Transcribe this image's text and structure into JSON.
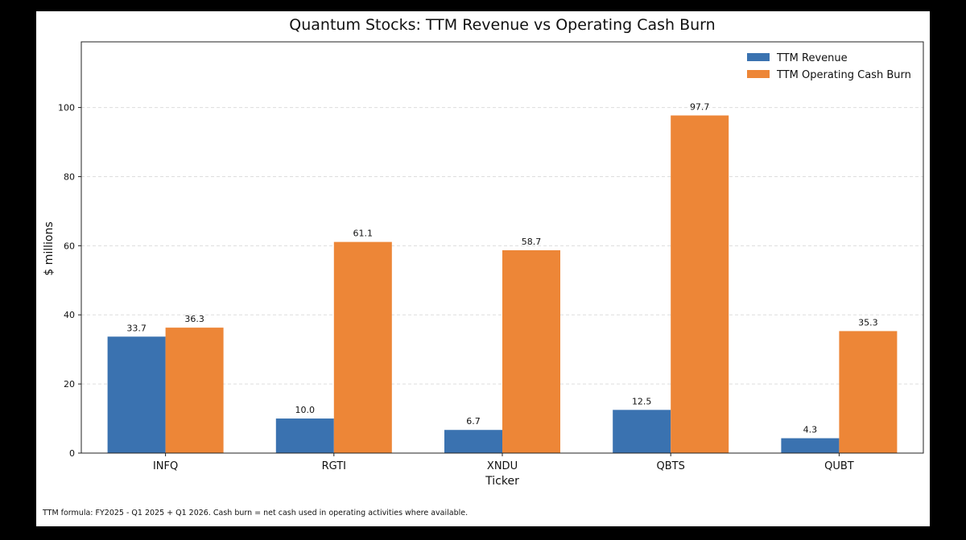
{
  "chart_data": {
    "type": "bar",
    "title": "Quantum Stocks: TTM Revenue vs Operating Cash Burn",
    "xlabel": "Ticker",
    "ylabel": "$ millions",
    "categories": [
      "INFQ",
      "RGTI",
      "XNDU",
      "QBTS",
      "QUBT"
    ],
    "series": [
      {
        "name": "TTM Revenue",
        "color": "#3a72b0",
        "values": [
          33.7,
          10.0,
          6.7,
          12.5,
          4.3
        ],
        "labels": [
          "33.7",
          "10.0",
          "6.7",
          "12.5",
          "4.3"
        ]
      },
      {
        "name": "TTM Operating Cash Burn",
        "color": "#ed8637",
        "values": [
          36.3,
          61.1,
          58.7,
          97.7,
          35.3
        ],
        "labels": [
          "36.3",
          "61.1",
          "58.7",
          "97.7",
          "35.3"
        ]
      }
    ],
    "ylim": [
      0,
      119
    ],
    "yticks": [
      0,
      20,
      40,
      60,
      80,
      100
    ],
    "grid": "horizontal dashed",
    "legend": "top-right"
  },
  "footnote": "TTM formula: FY2025 - Q1 2025 + Q1 2026. Cash burn = net cash used in operating activities where available."
}
